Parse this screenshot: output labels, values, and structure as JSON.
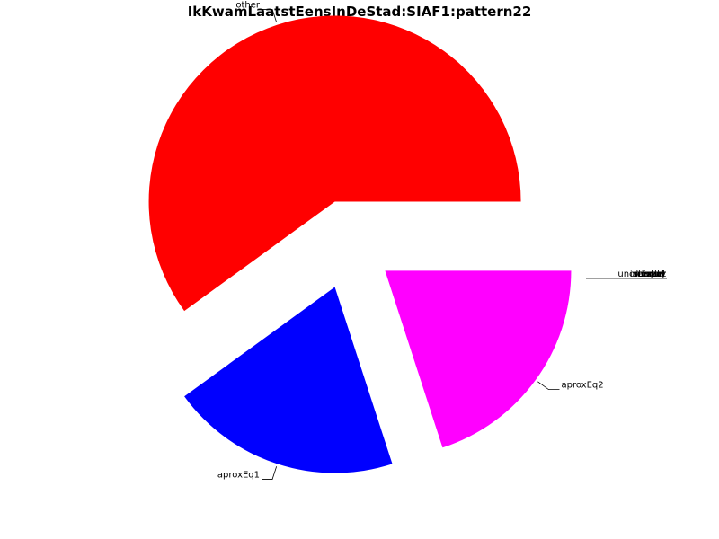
{
  "chart_data": {
    "type": "pie",
    "title": "IkKwamLaatstEensInDeStad:SIAF1:pattern22",
    "slices": [
      {
        "label": "other",
        "value": 60,
        "color": "#ff0000",
        "exploded": true
      },
      {
        "label": "aproxEq1",
        "value": 20,
        "color": "#0000ff",
        "exploded": true
      },
      {
        "label": "aproxEq2",
        "value": 20,
        "color": "#ff00ff",
        "exploded": true
      }
    ],
    "overlapping_labels": [
      "exact",
      "interval",
      "larger",
      "smaller",
      "unordered",
      "mixed",
      "empty"
    ],
    "start_angle_deg": 0,
    "direction": "counterclockwise",
    "legend": "none"
  }
}
